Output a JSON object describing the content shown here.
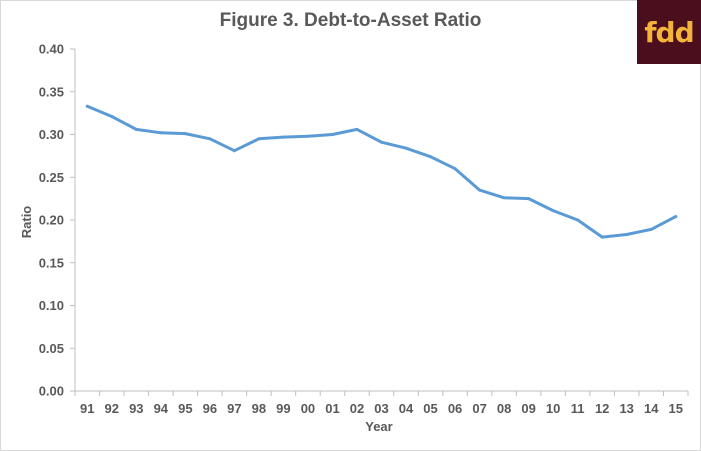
{
  "title": "Figure 3.  Debt-to-Asset Ratio",
  "logo": {
    "text": "fdd",
    "background": "#4a0e1c",
    "color": "#f2b43a"
  },
  "chart_data": {
    "type": "line",
    "title": "Figure 3.  Debt-to-Asset Ratio",
    "xlabel": "Year",
    "ylabel": "Ratio",
    "ylim": [
      0,
      0.4
    ],
    "yticks": [
      "0.00",
      "0.05",
      "0.10",
      "0.15",
      "0.20",
      "0.25",
      "0.30",
      "0.35",
      "0.40"
    ],
    "grid": false,
    "legend": "none",
    "line_color": "#5b9bd5",
    "categories": [
      "91",
      "92",
      "93",
      "94",
      "95",
      "96",
      "97",
      "98",
      "99",
      "00",
      "01",
      "02",
      "03",
      "04",
      "05",
      "06",
      "07",
      "08",
      "09",
      "10",
      "11",
      "12",
      "13",
      "14",
      "15"
    ],
    "values": [
      0.333,
      0.321,
      0.306,
      0.302,
      0.301,
      0.295,
      0.281,
      0.295,
      0.297,
      0.298,
      0.3,
      0.306,
      0.291,
      0.284,
      0.274,
      0.26,
      0.235,
      0.226,
      0.225,
      0.211,
      0.2,
      0.18,
      0.183,
      0.189,
      0.204
    ]
  }
}
